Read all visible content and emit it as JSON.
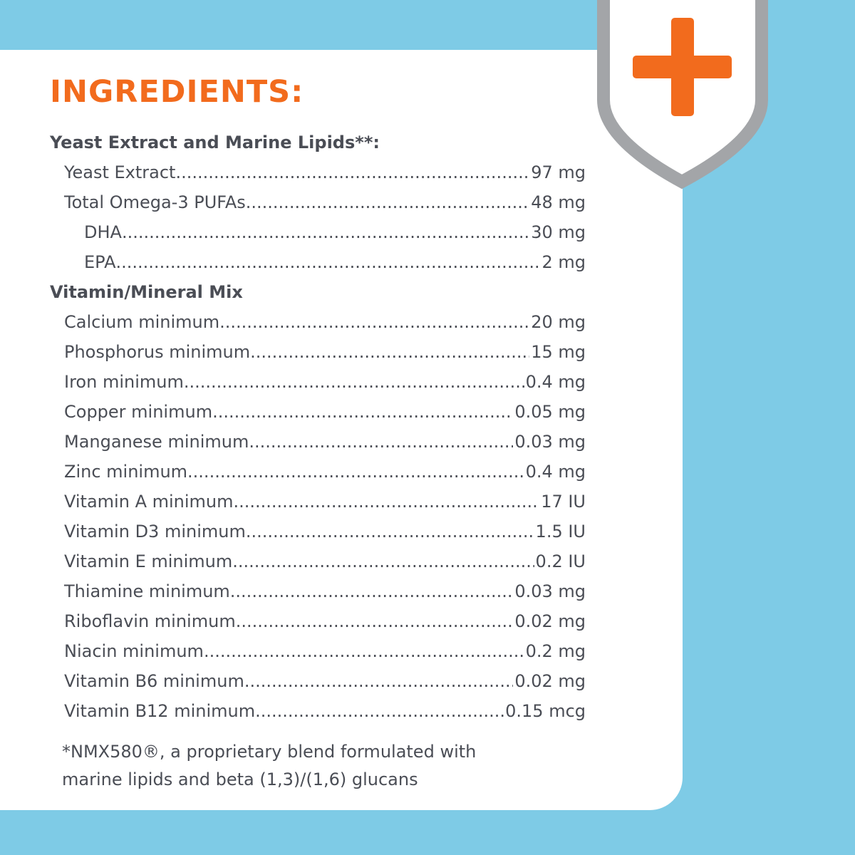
{
  "title": "INGREDIENTS:",
  "colors": {
    "background": "#7ecbe6",
    "accent": "#f26b1d",
    "shield_border": "#a3a5a8",
    "text": "#4a4d55"
  },
  "icon": "shield-plus-icon",
  "rows": [
    {
      "label": "Yeast Extract and Marine Lipids**:",
      "value": "",
      "level": 0
    },
    {
      "label": "Yeast Extract",
      "value": "97 mg",
      "level": 1
    },
    {
      "label": "Total Omega-3 PUFAs",
      "value": "48 mg",
      "level": 1
    },
    {
      "label": "DHA",
      "value": "30 mg",
      "level": 2
    },
    {
      "label": "EPA",
      "value": "2 mg",
      "level": 2
    },
    {
      "label": "Vitamin/Mineral Mix",
      "value": "",
      "level": 0
    },
    {
      "label": "Calcium minimum",
      "value": "20 mg",
      "level": 1
    },
    {
      "label": "Phosphorus minimum",
      "value": "15 mg",
      "level": 1
    },
    {
      "label": "Iron minimum",
      "value": "0.4 mg",
      "level": 1
    },
    {
      "label": "Copper minimum",
      "value": "0.05 mg",
      "level": 1
    },
    {
      "label": "Manganese minimum",
      "value": "0.03 mg",
      "level": 1
    },
    {
      "label": "Zinc minimum",
      "value": "0.4 mg",
      "level": 1
    },
    {
      "label": "Vitamin A minimum",
      "value": "17 IU",
      "level": 1
    },
    {
      "label": "Vitamin D3 minimum",
      "value": "1.5 IU",
      "level": 1
    },
    {
      "label": "Vitamin E minimum",
      "value": "0.2 IU",
      "level": 1
    },
    {
      "label": "Thiamine minimum",
      "value": "0.03 mg",
      "level": 1
    },
    {
      "label": "Riboflavin minimum",
      "value": "0.02 mg",
      "level": 1
    },
    {
      "label": "Niacin minimum",
      "value": "0.2 mg",
      "level": 1
    },
    {
      "label": "Vitamin B6 minimum",
      "value": "0.02 mg",
      "level": 1
    },
    {
      "label": "Vitamin B12 minimum",
      "value": "0.15 mcg",
      "level": 1
    }
  ],
  "footnote": {
    "line1": "*NMX580®, a proprietary blend formulated with",
    "line2": "marine lipids and beta (1,3)/(1,6) glucans"
  }
}
